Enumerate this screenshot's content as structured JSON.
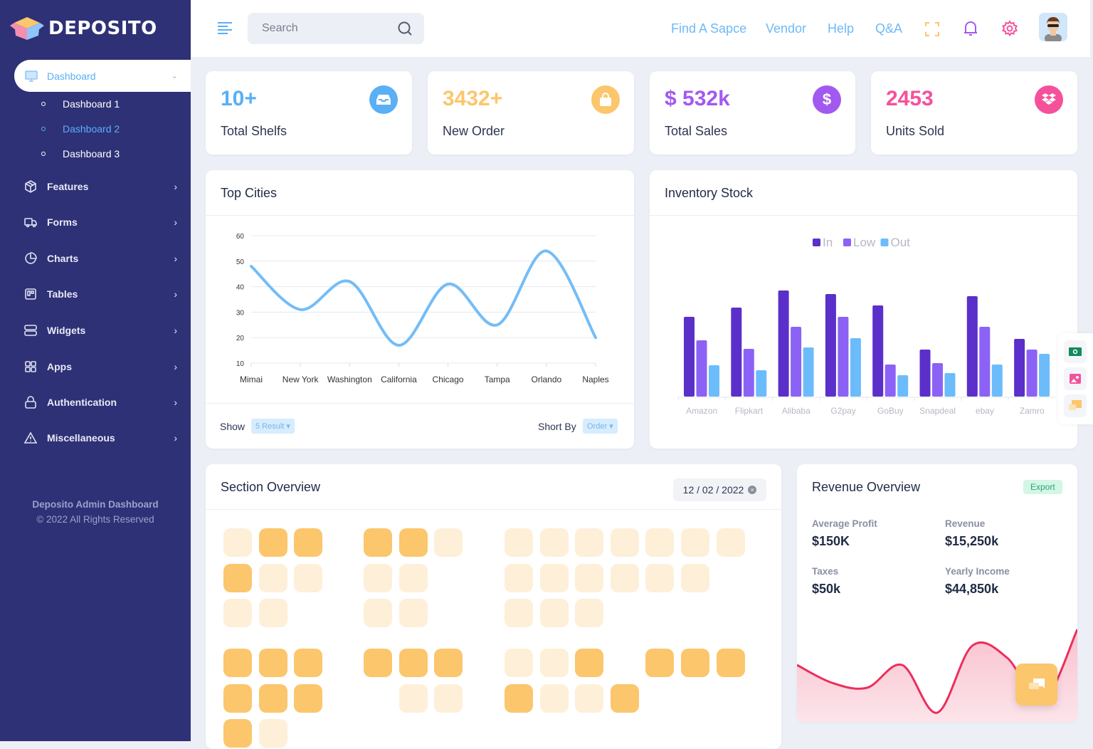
{
  "brand": {
    "name": "DEPOSITO"
  },
  "sidebar": {
    "active": {
      "label": "Dashboard",
      "icon": "monitor-icon"
    },
    "sub_items": [
      {
        "label": "Dashboard 1"
      },
      {
        "label": "Dashboard 2",
        "active": true
      },
      {
        "label": "Dashboard 3"
      }
    ],
    "items": [
      {
        "label": "Features",
        "icon": "box-icon"
      },
      {
        "label": "Forms",
        "icon": "truck-icon"
      },
      {
        "label": "Charts",
        "icon": "pie-chart-icon"
      },
      {
        "label": "Tables",
        "icon": "table-icon"
      },
      {
        "label": "Widgets",
        "icon": "server-icon"
      },
      {
        "label": "Apps",
        "icon": "grid-icon"
      },
      {
        "label": "Authentication",
        "icon": "lock-icon"
      },
      {
        "label": "Miscellaneous",
        "icon": "warning-icon"
      }
    ],
    "footer": {
      "title": "Deposito Admin Dashboard",
      "copyright": "© 2022 All Rights Reserved"
    }
  },
  "header": {
    "search_placeholder": "Search",
    "links": [
      "Find A Sapce",
      "Vendor",
      "Help",
      "Q&A"
    ],
    "icons": [
      "fullscreen-icon",
      "bell-icon",
      "gear-icon",
      "avatar"
    ]
  },
  "stats": [
    {
      "value": "10+",
      "label": "Total Shelfs",
      "color": "#5aaff5",
      "icon": "inbox-icon"
    },
    {
      "value": "3432+",
      "label": "New Order",
      "color": "#fbc66c",
      "icon": "shopping-bag-icon"
    },
    {
      "value": "$ 532k",
      "label": "Total Sales",
      "color": "#a259f0",
      "icon": "dollar-icon"
    },
    {
      "value": "2453",
      "label": "Units Sold",
      "color": "#f5519b",
      "icon": "dropbox-icon"
    }
  ],
  "top_cities": {
    "title": "Top Cities",
    "show_label": "Show",
    "show_value": "5 Result",
    "sort_label": "Short By",
    "sort_value": "Order"
  },
  "inventory": {
    "title": "Inventory Stock"
  },
  "section_overview": {
    "title": "Section Overview",
    "date": "12 / 02 / 2022",
    "blocks": [
      [
        [
          "011",
          "100",
          "00 "
        ],
        [
          "110",
          "00 ",
          "00 "
        ],
        [
          "0000000",
          "000000 ",
          "000    "
        ]
      ],
      [
        [
          "111",
          "111",
          "10 "
        ],
        [
          "111",
          " 00",
          "   "
        ],
        [
          "001 111",
          "1001   ",
          "       "
        ]
      ]
    ]
  },
  "revenue": {
    "title": "Revenue Overview",
    "export_label": "Export",
    "metrics": [
      {
        "label": "Average Profit",
        "value": "$150K"
      },
      {
        "label": "Revenue",
        "value": "$15,250k"
      },
      {
        "label": "Taxes",
        "value": "$50k"
      },
      {
        "label": "Yearly Income",
        "value": "$44,850k"
      }
    ]
  },
  "chart_data": [
    {
      "type": "line",
      "title": "Top Cities",
      "categories": [
        "Mimai",
        "New York",
        "Washington",
        "California",
        "Chicago",
        "Tampa",
        "Orlando",
        "Naples"
      ],
      "values": [
        48,
        31,
        42,
        17,
        41,
        25,
        54,
        20
      ],
      "ylim": [
        10,
        60
      ],
      "yticks": [
        10,
        20,
        30,
        40,
        50,
        60
      ],
      "grid": true,
      "color": "#74bdf7"
    },
    {
      "type": "bar",
      "title": "Inventory Stock",
      "categories": [
        "Amazon",
        "Flipkart",
        "Alibaba",
        "G2pay",
        "GoBuy",
        "Snapdeal",
        "ebay",
        "Zamro"
      ],
      "series": [
        {
          "name": "In",
          "color": "#5b2fc9",
          "values": [
            112,
            125,
            149,
            144,
            128,
            66,
            141,
            81
          ]
        },
        {
          "name": "Low",
          "color": "#8b62f5",
          "values": [
            79,
            67,
            98,
            112,
            45,
            47,
            98,
            66
          ]
        },
        {
          "name": "Out",
          "color": "#6cbcfb",
          "values": [
            44,
            37,
            69,
            82,
            30,
            33,
            45,
            60
          ]
        }
      ],
      "legend": "top-center",
      "grid": false
    },
    {
      "type": "area",
      "title": "Revenue Overview",
      "values": [
        75,
        50,
        43,
        75,
        8,
        102,
        85,
        23,
        125
      ],
      "color": "#ec2f5b",
      "fill": "#f8c2cf"
    }
  ]
}
